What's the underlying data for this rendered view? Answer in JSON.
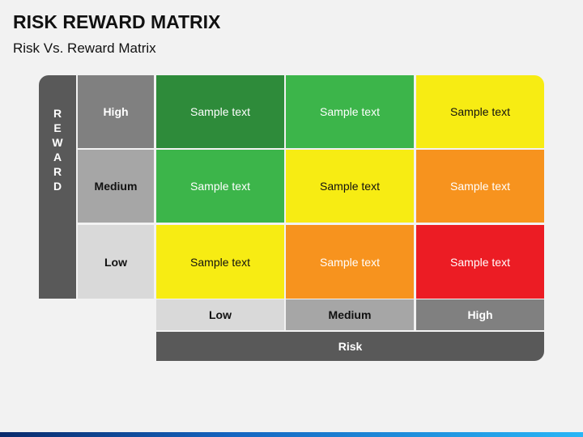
{
  "header": {
    "title": "RISK REWARD MATRIX",
    "subtitle": "Risk Vs. Reward Matrix"
  },
  "matrix": {
    "y_axis_label": "REWARD",
    "x_axis_label": "Risk",
    "row_labels": [
      "High",
      "Medium",
      "Low"
    ],
    "column_labels": [
      "Low",
      "Medium",
      "High"
    ],
    "cells": [
      [
        "Sample text",
        "Sample text",
        "Sample text"
      ],
      [
        "Sample text",
        "Sample text",
        "Sample text"
      ],
      [
        "Sample text",
        "Sample text",
        "Sample text"
      ]
    ]
  }
}
